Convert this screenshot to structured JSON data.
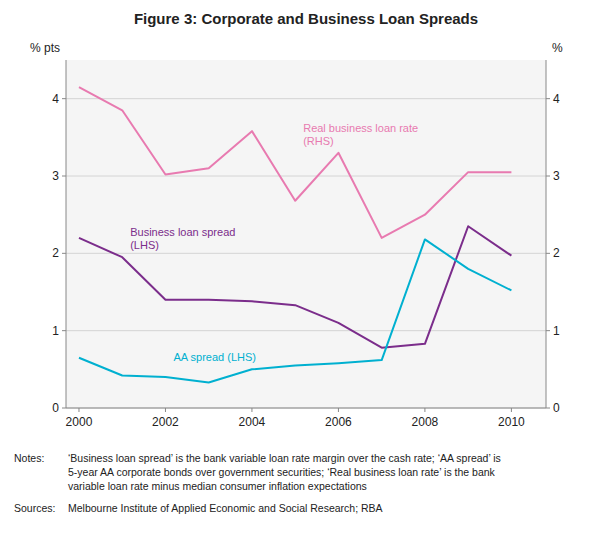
{
  "chart_data": {
    "type": "line",
    "title": "Figure 3: Corporate and Business Loan Spreads",
    "y_label": "% pts",
    "y2_label": "%",
    "x": [
      2000,
      2001,
      2002,
      2003,
      2004,
      2005,
      2006,
      2007,
      2008,
      2009,
      2010
    ],
    "xlim": [
      1999.7,
      2010.8
    ],
    "xticks": [
      2000,
      2002,
      2004,
      2006,
      2008,
      2010
    ],
    "ylim": [
      0,
      4.5
    ],
    "yticks": [
      0,
      1,
      2,
      3,
      4
    ],
    "y2lim": [
      0,
      4.5
    ],
    "y2ticks": [
      0,
      1,
      2,
      3,
      4
    ],
    "grid": true,
    "series": [
      {
        "values": [
          2.2,
          1.95,
          1.4,
          1.4,
          1.38,
          1.33,
          1.1,
          0.78,
          0.83,
          2.35,
          1.97
        ],
        "color": "#7b2d8b",
        "annotation": "Business loan spread\n(LHS)"
      },
      {
        "values": [
          0.65,
          0.42,
          0.4,
          0.33,
          0.5,
          0.55,
          0.58,
          0.62,
          2.18,
          1.8,
          1.52
        ],
        "color": "#00b0d0",
        "annotation": "AA spread (LHS)"
      },
      {
        "values": [
          4.15,
          3.85,
          3.02,
          3.1,
          3.58,
          2.68,
          3.3,
          2.2,
          2.5,
          3.05,
          3.05
        ],
        "color": "#e87ab0",
        "axis": "y2",
        "annotation": "Real business loan rate\n(RHS)"
      }
    ],
    "notes": {
      "label": "Notes:",
      "text": "‘Business loan spread’ is the bank variable loan rate margin over the cash rate; ‘AA spread’ is\n5-year AA corporate bonds over government securities; ‘Real business loan rate’ is the bank\nvariable loan rate minus median consumer inflation expectations"
    },
    "sources": {
      "label": "Sources:",
      "text": "Melbourne Institute of Applied Economic and Social Research; RBA"
    }
  }
}
